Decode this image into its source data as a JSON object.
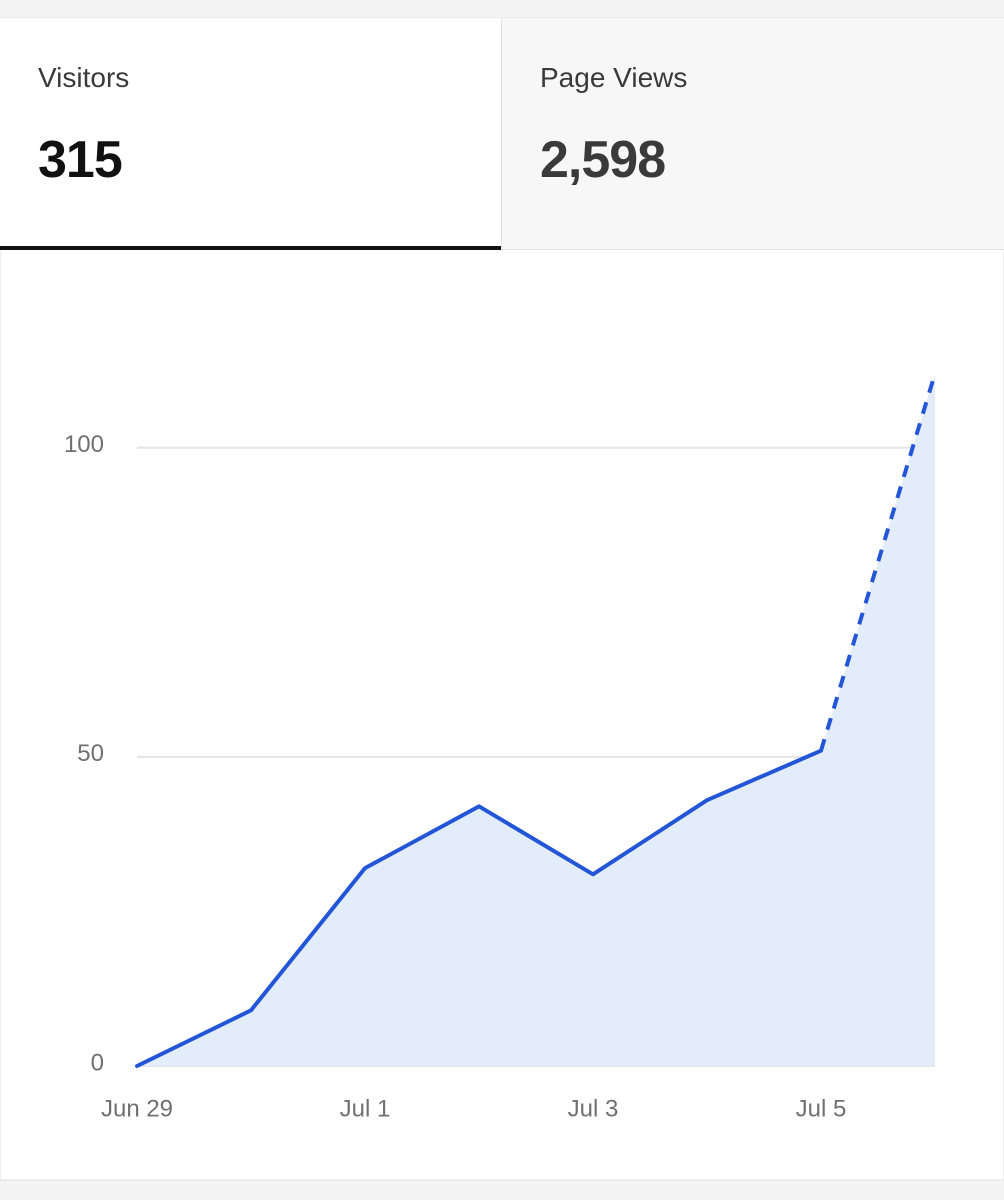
{
  "tabs": [
    {
      "label": "Visitors",
      "value": "315"
    },
    {
      "label": "Page Views",
      "value": "2,598"
    }
  ],
  "active_tab": 0,
  "chart_data": {
    "type": "area",
    "categories": [
      "Jun 29",
      null,
      "Jul 1",
      null,
      "Jul 3",
      null,
      "Jul 5",
      null
    ],
    "values": [
      0,
      9,
      32,
      42,
      31,
      43,
      51,
      112
    ],
    "color": "#2356d6",
    "fill": "#e3ecf9",
    "ylim": [
      0,
      115
    ],
    "yticks": [
      0,
      50,
      100
    ],
    "grid": true,
    "dashed_last_segment": true
  }
}
